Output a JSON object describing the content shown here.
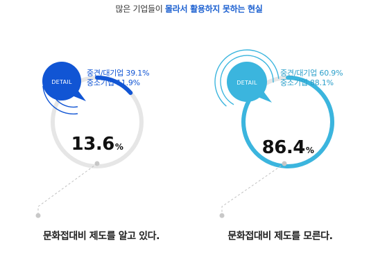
{
  "title": {
    "prefix": "많은 기업들이 ",
    "highlight": "몰라서 활용하지 못하는 현실"
  },
  "chart_data": [
    {
      "type": "pie",
      "label": "DETAIL",
      "value": 13.6,
      "value_text": "13.6",
      "unit": "%",
      "detail_lines": [
        "중견/대기업 39.1%",
        "중소기업 11.9%"
      ],
      "caption": "문화접대비 제도를 알고 있다.",
      "color": "#1155d4",
      "ring_color": "#e6e6e6",
      "text_color": "#1155d4"
    },
    {
      "type": "pie",
      "label": "DETAIL",
      "value": 86.4,
      "value_text": "86.4",
      "unit": "%",
      "detail_lines": [
        "중견/대기업 60.9%",
        "중소기업 88.1%"
      ],
      "caption": "문화접대비 제도를 모른다.",
      "color": "#3bb5de",
      "ring_color": "#e6e6e6",
      "text_color": "#2b9fca"
    }
  ]
}
